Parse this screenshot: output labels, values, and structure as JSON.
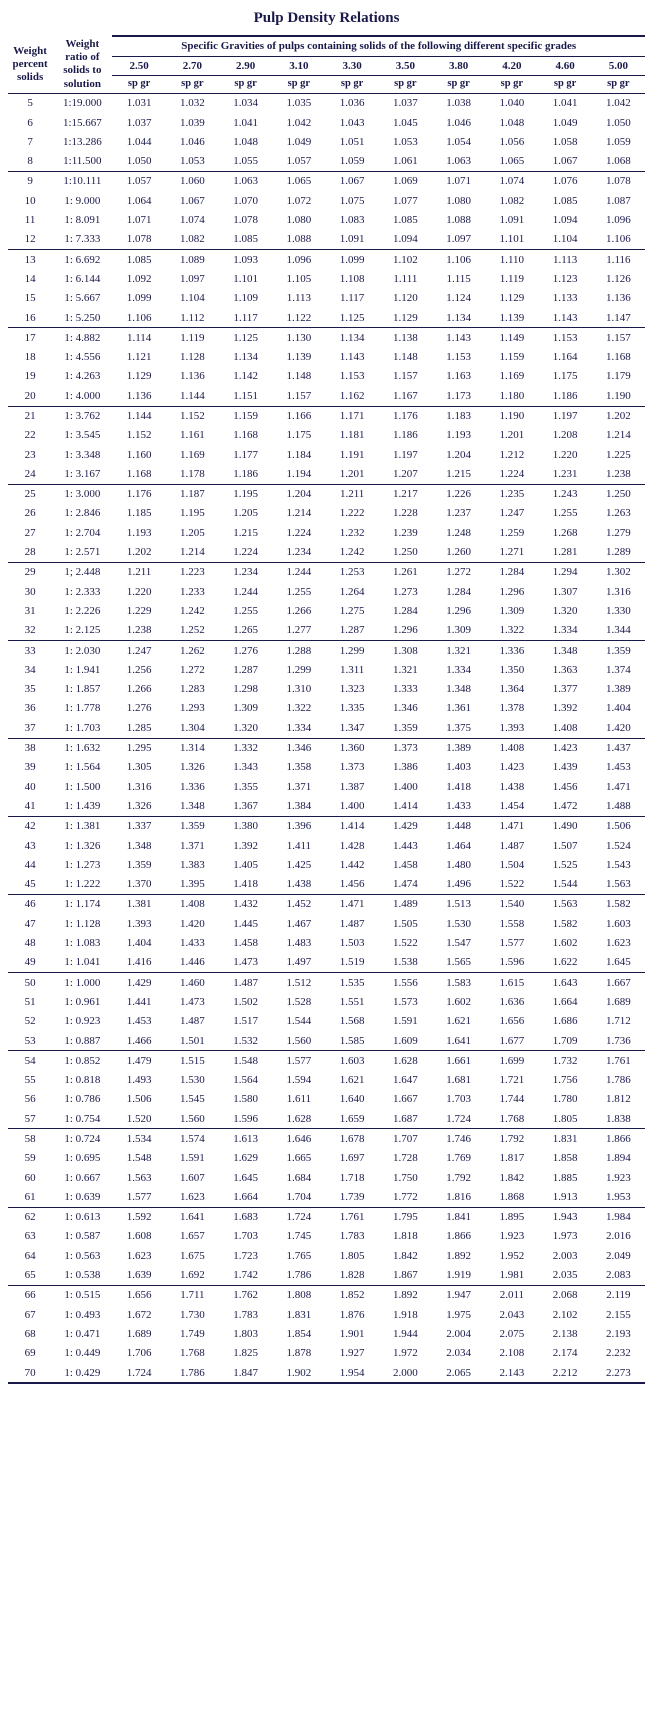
{
  "title": "Pulp Density Relations",
  "header": {
    "col1": "Weight percent solids",
    "col2": "Weight ratio of solids to solution",
    "super": "Specific Gravities of pulps containing solids of the following different specific grades",
    "grades": [
      "2.50",
      "2.70",
      "2.90",
      "3.10",
      "3.30",
      "3.50",
      "3.80",
      "4.20",
      "4.60",
      "5.00"
    ],
    "sub": "sp gr"
  },
  "groups": [
    [
      {
        "w": "5",
        "r": "1:19.000",
        "v": [
          "1.031",
          "1.032",
          "1.034",
          "1.035",
          "1.036",
          "1.037",
          "1.038",
          "1.040",
          "1.041",
          "1.042"
        ]
      },
      {
        "w": "6",
        "r": "1:15.667",
        "v": [
          "1.037",
          "1.039",
          "1.041",
          "1.042",
          "1.043",
          "1.045",
          "1.046",
          "1.048",
          "1.049",
          "1.050"
        ]
      },
      {
        "w": "7",
        "r": "1:13.286",
        "v": [
          "1.044",
          "1.046",
          "1.048",
          "1.049",
          "1.051",
          "1.053",
          "1.054",
          "1.056",
          "1.058",
          "1.059"
        ]
      },
      {
        "w": "8",
        "r": "1:11.500",
        "v": [
          "1.050",
          "1.053",
          "1.055",
          "1.057",
          "1.059",
          "1.061",
          "1.063",
          "1.065",
          "1.067",
          "1.068"
        ]
      }
    ],
    [
      {
        "w": "9",
        "r": "1:10.111",
        "v": [
          "1.057",
          "1.060",
          "1.063",
          "1.065",
          "1.067",
          "1.069",
          "1.071",
          "1.074",
          "1.076",
          "1.078"
        ]
      },
      {
        "w": "10",
        "r": "1: 9.000",
        "v": [
          "1.064",
          "1.067",
          "1.070",
          "1.072",
          "1.075",
          "1.077",
          "1.080",
          "1.082",
          "1.085",
          "1.087"
        ]
      },
      {
        "w": "11",
        "r": "1: 8.091",
        "v": [
          "1.071",
          "1.074",
          "1.078",
          "1.080",
          "1.083",
          "1.085",
          "1.088",
          "1.091",
          "1.094",
          "1.096"
        ]
      },
      {
        "w": "12",
        "r": "1: 7.333",
        "v": [
          "1.078",
          "1.082",
          "1.085",
          "1.088",
          "1.091",
          "1.094",
          "1.097",
          "1.101",
          "1.104",
          "1.106"
        ]
      }
    ],
    [
      {
        "w": "13",
        "r": "1: 6.692",
        "v": [
          "1.085",
          "1.089",
          "1.093",
          "1.096",
          "1.099",
          "1.102",
          "1.106",
          "1.110",
          "1.113",
          "1.116"
        ]
      },
      {
        "w": "14",
        "r": "1: 6.144",
        "v": [
          "1.092",
          "1.097",
          "1.101",
          "1.105",
          "1.108",
          "1.111",
          "1.115",
          "1.119",
          "1.123",
          "1.126"
        ]
      },
      {
        "w": "15",
        "r": "1: 5.667",
        "v": [
          "1.099",
          "1.104",
          "1.109",
          "1.113",
          "1.117",
          "1.120",
          "1.124",
          "1.129",
          "1.133",
          "1.136"
        ]
      },
      {
        "w": "16",
        "r": "1: 5.250",
        "v": [
          "1.106",
          "1.112",
          "1.117",
          "1.122",
          "1.125",
          "1.129",
          "1.134",
          "1.139",
          "1.143",
          "1.147"
        ]
      }
    ],
    [
      {
        "w": "17",
        "r": "1: 4.882",
        "v": [
          "1.114",
          "1.119",
          "1.125",
          "1.130",
          "1.134",
          "1.138",
          "1.143",
          "1.149",
          "1.153",
          "1.157"
        ]
      },
      {
        "w": "18",
        "r": "1: 4.556",
        "v": [
          "1.121",
          "1.128",
          "1.134",
          "1.139",
          "1.143",
          "1.148",
          "1.153",
          "1.159",
          "1.164",
          "1.168"
        ]
      },
      {
        "w": "19",
        "r": "1: 4.263",
        "v": [
          "1.129",
          "1.136",
          "1.142",
          "1.148",
          "1.153",
          "1.157",
          "1.163",
          "1.169",
          "1.175",
          "1.179"
        ]
      },
      {
        "w": "20",
        "r": "1: 4.000",
        "v": [
          "1.136",
          "1.144",
          "1.151",
          "1.157",
          "1.162",
          "1.167",
          "1.173",
          "1.180",
          "1.186",
          "1.190"
        ]
      }
    ],
    [
      {
        "w": "21",
        "r": "1: 3.762",
        "v": [
          "1.144",
          "1.152",
          "1.159",
          "1.166",
          "1.171",
          "1.176",
          "1.183",
          "1.190",
          "1.197",
          "1.202"
        ]
      },
      {
        "w": "22",
        "r": "1: 3.545",
        "v": [
          "1.152",
          "1.161",
          "1.168",
          "1.175",
          "1.181",
          "1.186",
          "1.193",
          "1.201",
          "1.208",
          "1.214"
        ]
      },
      {
        "w": "23",
        "r": "1: 3.348",
        "v": [
          "1.160",
          "1.169",
          "1.177",
          "1.184",
          "1.191",
          "1.197",
          "1.204",
          "1.212",
          "1.220",
          "1.225"
        ]
      },
      {
        "w": "24",
        "r": "1: 3.167",
        "v": [
          "1.168",
          "1.178",
          "1.186",
          "1.194",
          "1.201",
          "1.207",
          "1.215",
          "1.224",
          "1.231",
          "1.238"
        ]
      }
    ],
    [
      {
        "w": "25",
        "r": "1: 3.000",
        "v": [
          "1.176",
          "1.187",
          "1.195",
          "1.204",
          "1.211",
          "1.217",
          "1.226",
          "1.235",
          "1.243",
          "1.250"
        ]
      },
      {
        "w": "26",
        "r": "1: 2.846",
        "v": [
          "1.185",
          "1.195",
          "1.205",
          "1.214",
          "1.222",
          "1.228",
          "1.237",
          "1.247",
          "1.255",
          "1.263"
        ]
      },
      {
        "w": "27",
        "r": "1: 2.704",
        "v": [
          "1.193",
          "1.205",
          "1.215",
          "1.224",
          "1.232",
          "1.239",
          "1.248",
          "1.259",
          "1.268",
          "1.279"
        ]
      },
      {
        "w": "28",
        "r": "1: 2.571",
        "v": [
          "1.202",
          "1.214",
          "1.224",
          "1.234",
          "1.242",
          "1.250",
          "1.260",
          "1.271",
          "1.281",
          "1.289"
        ]
      }
    ],
    [
      {
        "w": "29",
        "r": "1; 2.448",
        "v": [
          "1.211",
          "1.223",
          "1.234",
          "1.244",
          "1.253",
          "1.261",
          "1.272",
          "1.284",
          "1.294",
          "1.302"
        ]
      },
      {
        "w": "30",
        "r": "1: 2.333",
        "v": [
          "1.220",
          "1.233",
          "1.244",
          "1.255",
          "1.264",
          "1.273",
          "1.284",
          "1.296",
          "1.307",
          "1.316"
        ]
      },
      {
        "w": "31",
        "r": "1: 2.226",
        "v": [
          "1.229",
          "1.242",
          "1.255",
          "1.266",
          "1.275",
          "1.284",
          "1.296",
          "1.309",
          "1.320",
          "1.330"
        ]
      },
      {
        "w": "32",
        "r": "1: 2.125",
        "v": [
          "1.238",
          "1.252",
          "1.265",
          "1.277",
          "1.287",
          "1.296",
          "1.309",
          "1.322",
          "1.334",
          "1.344"
        ]
      }
    ],
    [
      {
        "w": "33",
        "r": "1: 2.030",
        "v": [
          "1.247",
          "1.262",
          "1.276",
          "1.288",
          "1.299",
          "1.308",
          "1.321",
          "1.336",
          "1.348",
          "1.359"
        ]
      },
      {
        "w": "34",
        "r": "1: 1.941",
        "v": [
          "1.256",
          "1.272",
          "1.287",
          "1.299",
          "1.311",
          "1.321",
          "1.334",
          "1.350",
          "1.363",
          "1.374"
        ]
      },
      {
        "w": "35",
        "r": "1: 1.857",
        "v": [
          "1.266",
          "1.283",
          "1.298",
          "1.310",
          "1.323",
          "1.333",
          "1.348",
          "1.364",
          "1.377",
          "1.389"
        ]
      },
      {
        "w": "36",
        "r": "1: 1.778",
        "v": [
          "1.276",
          "1.293",
          "1.309",
          "1.322",
          "1.335",
          "1.346",
          "1.361",
          "1.378",
          "1.392",
          "1.404"
        ]
      },
      {
        "w": "37",
        "r": "1: 1.703",
        "v": [
          "1.285",
          "1.304",
          "1.320",
          "1.334",
          "1.347",
          "1.359",
          "1.375",
          "1.393",
          "1.408",
          "1.420"
        ]
      }
    ],
    [
      {
        "w": "38",
        "r": "1: 1.632",
        "v": [
          "1.295",
          "1.314",
          "1.332",
          "1.346",
          "1.360",
          "1.373",
          "1.389",
          "1.408",
          "1.423",
          "1.437"
        ]
      },
      {
        "w": "39",
        "r": "1: 1.564",
        "v": [
          "1.305",
          "1.326",
          "1.343",
          "1.358",
          "1.373",
          "1.386",
          "1.403",
          "1.423",
          "1.439",
          "1.453"
        ]
      },
      {
        "w": "40",
        "r": "1: 1.500",
        "v": [
          "1.316",
          "1.336",
          "1.355",
          "1.371",
          "1.387",
          "1.400",
          "1.418",
          "1.438",
          "1.456",
          "1.471"
        ]
      },
      {
        "w": "41",
        "r": "1: 1.439",
        "v": [
          "1.326",
          "1.348",
          "1.367",
          "1.384",
          "1.400",
          "1.414",
          "1.433",
          "1.454",
          "1.472",
          "1.488"
        ]
      }
    ],
    [
      {
        "w": "42",
        "r": "1: 1.381",
        "v": [
          "1.337",
          "1.359",
          "1.380",
          "1.396",
          "1.414",
          "1.429",
          "1.448",
          "1.471",
          "1.490",
          "1.506"
        ]
      },
      {
        "w": "43",
        "r": "1: 1.326",
        "v": [
          "1.348",
          "1.371",
          "1.392",
          "1.411",
          "1.428",
          "1.443",
          "1.464",
          "1.487",
          "1.507",
          "1.524"
        ]
      },
      {
        "w": "44",
        "r": "1: 1.273",
        "v": [
          "1.359",
          "1.383",
          "1.405",
          "1.425",
          "1.442",
          "1.458",
          "1.480",
          "1.504",
          "1.525",
          "1.543"
        ]
      },
      {
        "w": "45",
        "r": "1: 1.222",
        "v": [
          "1.370",
          "1.395",
          "1.418",
          "1.438",
          "1.456",
          "1.474",
          "1.496",
          "1.522",
          "1.544",
          "1.563"
        ]
      }
    ],
    [
      {
        "w": "46",
        "r": "1: 1.174",
        "v": [
          "1.381",
          "1.408",
          "1.432",
          "1.452",
          "1.471",
          "1.489",
          "1.513",
          "1.540",
          "1.563",
          "1.582"
        ]
      },
      {
        "w": "47",
        "r": "1: 1.128",
        "v": [
          "1.393",
          "1.420",
          "1.445",
          "1.467",
          "1.487",
          "1.505",
          "1.530",
          "1.558",
          "1.582",
          "1.603"
        ]
      },
      {
        "w": "48",
        "r": "1: 1.083",
        "v": [
          "1.404",
          "1.433",
          "1.458",
          "1.483",
          "1.503",
          "1.522",
          "1.547",
          "1.577",
          "1.602",
          "1.623"
        ]
      },
      {
        "w": "49",
        "r": "1: 1.041",
        "v": [
          "1.416",
          "1.446",
          "1.473",
          "1.497",
          "1.519",
          "1.538",
          "1.565",
          "1.596",
          "1.622",
          "1.645"
        ]
      }
    ],
    [
      {
        "w": "50",
        "r": "1: 1.000",
        "v": [
          "1.429",
          "1.460",
          "1.487",
          "1.512",
          "1.535",
          "1.556",
          "1.583",
          "1.615",
          "1.643",
          "1.667"
        ]
      },
      {
        "w": "51",
        "r": "1: 0.961",
        "v": [
          "1.441",
          "1.473",
          "1.502",
          "1.528",
          "1.551",
          "1.573",
          "1.602",
          "1.636",
          "1.664",
          "1.689"
        ]
      },
      {
        "w": "52",
        "r": "1: 0.923",
        "v": [
          "1.453",
          "1.487",
          "1.517",
          "1.544",
          "1.568",
          "1.591",
          "1.621",
          "1.656",
          "1.686",
          "1.712"
        ]
      },
      {
        "w": "53",
        "r": "1: 0.887",
        "v": [
          "1.466",
          "1.501",
          "1.532",
          "1.560",
          "1.585",
          "1.609",
          "1.641",
          "1.677",
          "1.709",
          "1.736"
        ]
      }
    ],
    [
      {
        "w": "54",
        "r": "1: 0.852",
        "v": [
          "1.479",
          "1.515",
          "1.548",
          "1.577",
          "1.603",
          "1.628",
          "1.661",
          "1.699",
          "1.732",
          "1.761"
        ]
      },
      {
        "w": "55",
        "r": "1: 0.818",
        "v": [
          "1.493",
          "1.530",
          "1.564",
          "1.594",
          "1.621",
          "1.647",
          "1.681",
          "1.721",
          "1.756",
          "1.786"
        ]
      },
      {
        "w": "56",
        "r": "1: 0.786",
        "v": [
          "1.506",
          "1.545",
          "1.580",
          "1.611",
          "1.640",
          "1.667",
          "1.703",
          "1.744",
          "1.780",
          "1.812"
        ]
      },
      {
        "w": "57",
        "r": "1: 0.754",
        "v": [
          "1.520",
          "1.560",
          "1.596",
          "1.628",
          "1.659",
          "1.687",
          "1.724",
          "1.768",
          "1.805",
          "1.838"
        ]
      }
    ],
    [
      {
        "w": "58",
        "r": "1: 0.724",
        "v": [
          "1.534",
          "1.574",
          "1.613",
          "1.646",
          "1.678",
          "1.707",
          "1.746",
          "1.792",
          "1.831",
          "1.866"
        ]
      },
      {
        "w": "59",
        "r": "1: 0.695",
        "v": [
          "1.548",
          "1.591",
          "1.629",
          "1.665",
          "1.697",
          "1.728",
          "1.769",
          "1.817",
          "1.858",
          "1.894"
        ]
      },
      {
        "w": "60",
        "r": "1: 0.667",
        "v": [
          "1.563",
          "1.607",
          "1.645",
          "1.684",
          "1.718",
          "1.750",
          "1.792",
          "1.842",
          "1.885",
          "1.923"
        ]
      },
      {
        "w": "61",
        "r": "1: 0.639",
        "v": [
          "1.577",
          "1.623",
          "1.664",
          "1.704",
          "1.739",
          "1.772",
          "1.816",
          "1.868",
          "1.913",
          "1.953"
        ]
      }
    ],
    [
      {
        "w": "62",
        "r": "1: 0.613",
        "v": [
          "1.592",
          "1.641",
          "1.683",
          "1.724",
          "1.761",
          "1.795",
          "1.841",
          "1.895",
          "1.943",
          "1.984"
        ]
      },
      {
        "w": "63",
        "r": "1: 0.587",
        "v": [
          "1.608",
          "1.657",
          "1.703",
          "1.745",
          "1.783",
          "1.818",
          "1.866",
          "1.923",
          "1.973",
          "2.016"
        ]
      },
      {
        "w": "64",
        "r": "1: 0.563",
        "v": [
          "1.623",
          "1.675",
          "1.723",
          "1.765",
          "1.805",
          "1.842",
          "1.892",
          "1.952",
          "2.003",
          "2.049"
        ]
      },
      {
        "w": "65",
        "r": "1: 0.538",
        "v": [
          "1.639",
          "1.692",
          "1.742",
          "1.786",
          "1.828",
          "1.867",
          "1.919",
          "1.981",
          "2.035",
          "2.083"
        ]
      }
    ],
    [
      {
        "w": "66",
        "r": "1: 0.515",
        "v": [
          "1.656",
          "1.711",
          "1.762",
          "1.808",
          "1.852",
          "1.892",
          "1.947",
          "2.011",
          "2.068",
          "2.119"
        ]
      },
      {
        "w": "67",
        "r": "1: 0.493",
        "v": [
          "1.672",
          "1.730",
          "1.783",
          "1.831",
          "1.876",
          "1.918",
          "1.975",
          "2.043",
          "2.102",
          "2.155"
        ]
      },
      {
        "w": "68",
        "r": "1: 0.471",
        "v": [
          "1.689",
          "1.749",
          "1.803",
          "1.854",
          "1.901",
          "1.944",
          "2.004",
          "2.075",
          "2.138",
          "2.193"
        ]
      },
      {
        "w": "69",
        "r": "1: 0.449",
        "v": [
          "1.706",
          "1.768",
          "1.825",
          "1.878",
          "1.927",
          "1.972",
          "2.034",
          "2.108",
          "2.174",
          "2.232"
        ]
      },
      {
        "w": "70",
        "r": "1: 0.429",
        "v": [
          "1.724",
          "1.786",
          "1.847",
          "1.902",
          "1.954",
          "2.000",
          "2.065",
          "2.143",
          "2.212",
          "2.273"
        ]
      }
    ]
  ]
}
